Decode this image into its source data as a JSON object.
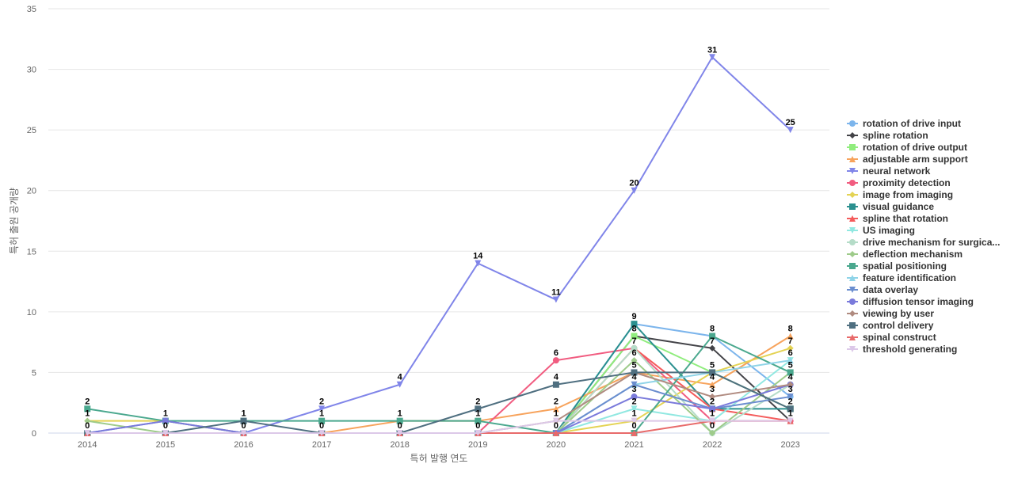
{
  "chart_data": {
    "type": "line",
    "title": "",
    "xlabel": "특허 발행 연도",
    "ylabel": "특허 출원 공개량",
    "ylim": [
      0,
      35
    ],
    "yticks": [
      0,
      5,
      10,
      15,
      20,
      25,
      30,
      35
    ],
    "grid": true,
    "legend": "right",
    "categories": [
      "2014",
      "2015",
      "2016",
      "2017",
      "2018",
      "2019",
      "2020",
      "2021",
      "2022",
      "2023"
    ],
    "series": [
      {
        "name": "rotation of drive input",
        "color": "#7cb5ec",
        "marker": "circle",
        "values": [
          0,
          0,
          0,
          0,
          0,
          0,
          0,
          9,
          8,
          3
        ]
      },
      {
        "name": "spline rotation",
        "color": "#434348",
        "marker": "diamond",
        "values": [
          0,
          0,
          0,
          0,
          0,
          0,
          0,
          8,
          7,
          1
        ]
      },
      {
        "name": "rotation of drive output",
        "color": "#90ed7d",
        "marker": "square",
        "values": [
          0,
          0,
          0,
          0,
          0,
          0,
          0,
          8,
          5,
          2
        ]
      },
      {
        "name": "adjustable arm support",
        "color": "#f7a35c",
        "marker": "triangle",
        "values": [
          0,
          0,
          0,
          0,
          1,
          1,
          2,
          5,
          4,
          8
        ]
      },
      {
        "name": "neural network",
        "color": "#8085e9",
        "marker": "triangle-down",
        "values": [
          0,
          0,
          0,
          2,
          4,
          14,
          11,
          20,
          31,
          25
        ]
      },
      {
        "name": "proximity detection",
        "color": "#f15c80",
        "marker": "circle",
        "values": [
          0,
          0,
          0,
          0,
          0,
          0,
          6,
          7,
          1,
          1
        ]
      },
      {
        "name": "image from imaging",
        "color": "#e4d354",
        "marker": "diamond",
        "values": [
          1,
          1,
          0,
          0,
          0,
          0,
          0,
          1,
          5,
          7
        ]
      },
      {
        "name": "visual guidance",
        "color": "#2b908f",
        "marker": "square",
        "values": [
          0,
          0,
          0,
          0,
          0,
          0,
          0,
          9,
          2,
          2
        ]
      },
      {
        "name": "spline that rotation",
        "color": "#f45b5b",
        "marker": "triangle",
        "values": [
          0,
          0,
          0,
          0,
          0,
          0,
          0,
          7,
          2,
          1
        ]
      },
      {
        "name": "US imaging",
        "color": "#91e8e1",
        "marker": "triangle-down",
        "values": [
          0,
          0,
          0,
          0,
          0,
          0,
          0,
          2,
          1,
          6
        ]
      },
      {
        "name": "drive mechanism for surgica...",
        "color": "#b5dcc8",
        "marker": "circle",
        "values": [
          0,
          0,
          0,
          0,
          0,
          0,
          0,
          7,
          0,
          4
        ]
      },
      {
        "name": "deflection mechanism",
        "color": "#9ecb8a",
        "marker": "diamond",
        "values": [
          1,
          0,
          0,
          0,
          0,
          0,
          0,
          6,
          0,
          5
        ]
      },
      {
        "name": "spatial positioning",
        "color": "#4aa88e",
        "marker": "square",
        "values": [
          2,
          1,
          1,
          1,
          1,
          1,
          0,
          0,
          8,
          5
        ]
      },
      {
        "name": "feature identification",
        "color": "#8fd4e8",
        "marker": "triangle",
        "values": [
          0,
          0,
          0,
          0,
          0,
          0,
          0,
          4,
          5,
          6
        ]
      },
      {
        "name": "data overlay",
        "color": "#6b8ecf",
        "marker": "triangle-down",
        "values": [
          0,
          1,
          0,
          0,
          0,
          0,
          0,
          4,
          2,
          3
        ]
      },
      {
        "name": "diffusion tensor imaging",
        "color": "#7a7adb",
        "marker": "circle",
        "values": [
          0,
          1,
          0,
          0,
          0,
          0,
          0,
          3,
          2,
          4
        ]
      },
      {
        "name": "viewing by user",
        "color": "#b08b80",
        "marker": "diamond",
        "values": [
          0,
          0,
          0,
          0,
          0,
          0,
          1,
          5,
          3,
          4
        ]
      },
      {
        "name": "control delivery",
        "color": "#4f6f80",
        "marker": "square",
        "values": [
          0,
          0,
          1,
          0,
          0,
          2,
          4,
          5,
          5,
          2
        ]
      },
      {
        "name": "spinal construct",
        "color": "#e86a6a",
        "marker": "triangle",
        "values": [
          0,
          0,
          0,
          0,
          0,
          0,
          0,
          0,
          1,
          1
        ]
      },
      {
        "name": "threshold generating",
        "color": "#dcc8e8",
        "marker": "triangle-down",
        "values": [
          0,
          0,
          0,
          0,
          0,
          0,
          1,
          1,
          1,
          1
        ]
      }
    ],
    "labels": {
      "2014": [
        "2",
        "1",
        "0"
      ],
      "2015": [
        "1",
        "0"
      ],
      "2016": [
        "1",
        "0"
      ],
      "2017": [
        "2",
        "1",
        "0"
      ],
      "2018": [
        "4",
        "1",
        "0"
      ],
      "2019": [
        "14",
        "2",
        "1",
        "0"
      ],
      "2020": [
        "11",
        "6",
        "4",
        "2",
        "1",
        "0"
      ],
      "2021": [
        "20",
        "9",
        "8",
        "7",
        "6",
        "5",
        "4",
        "3",
        "2",
        "1",
        "0"
      ],
      "2022": [
        "31",
        "8",
        "7",
        "5",
        "4",
        "3",
        "2",
        "1",
        "0"
      ],
      "2023": [
        "25",
        "8",
        "7",
        "6",
        "5",
        "4",
        "3",
        "2",
        "1"
      ]
    }
  }
}
